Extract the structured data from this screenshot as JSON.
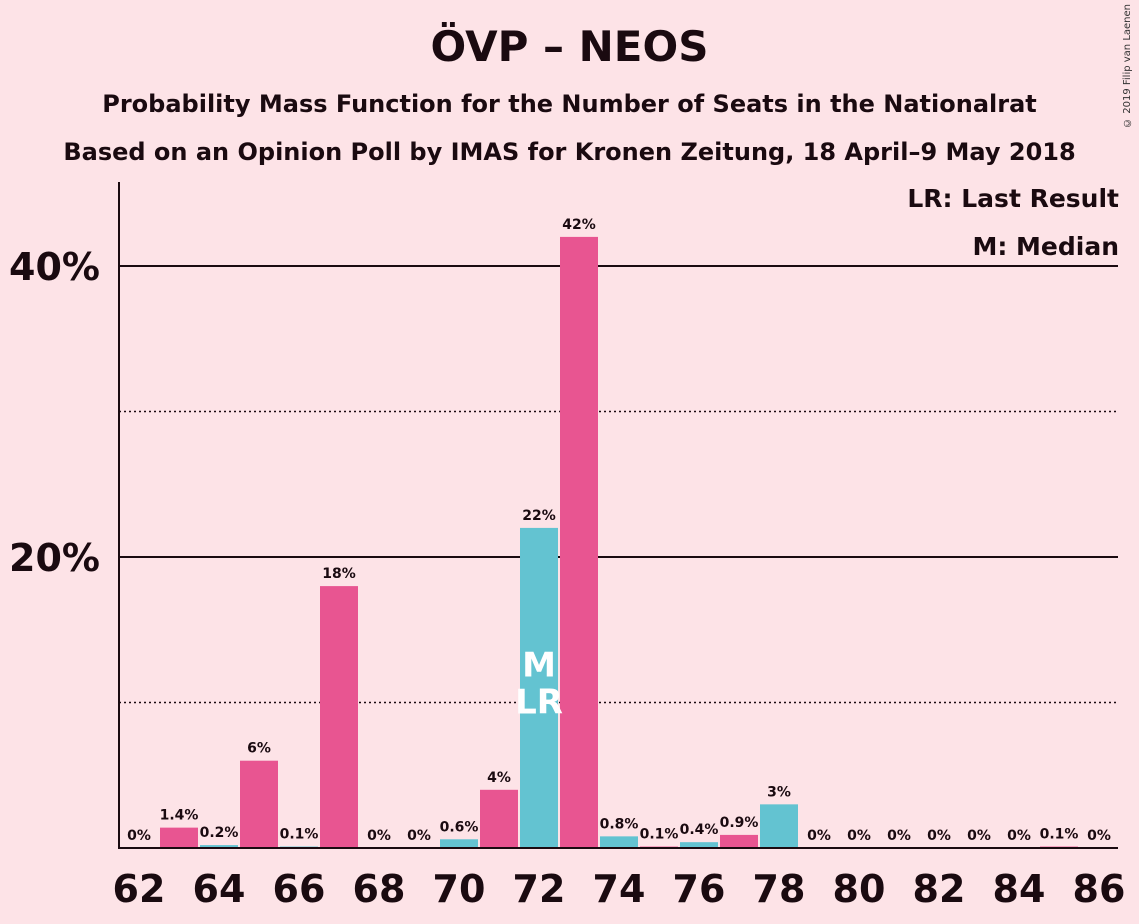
{
  "title": "ÖVP – NEOS",
  "subtitle1": "Probability Mass Function for the Number of Seats in the Nationalrat",
  "subtitle2": "Based on an Opinion Poll by IMAS for Kronen Zeitung, 18 April–9 May 2018",
  "copyright": "© 2019 Filip van Laenen",
  "legend": {
    "last_result": "LR: Last Result",
    "median": "M: Median"
  },
  "colors": {
    "background": "#FDE3E7",
    "pink": "#E85591",
    "cyan": "#63C3D1",
    "text": "#1a0a10"
  },
  "chart_data": {
    "type": "bar",
    "x": [
      62,
      63,
      64,
      65,
      66,
      67,
      68,
      69,
      70,
      71,
      72,
      73,
      74,
      75,
      76,
      77,
      78,
      79,
      80,
      81,
      82,
      83,
      84,
      85,
      86
    ],
    "values": [
      0,
      1.4,
      0.2,
      6,
      0.1,
      18,
      0,
      0,
      0.6,
      4,
      22,
      42,
      0.8,
      0.1,
      0.4,
      0.9,
      3,
      0,
      0,
      0,
      0,
      0,
      0,
      0.1,
      0
    ],
    "labels": [
      "0%",
      "1.4%",
      "0.2%",
      "6%",
      "0.1%",
      "18%",
      "0%",
      "0%",
      "0.6%",
      "4%",
      "22%",
      "42%",
      "0.8%",
      "0.1%",
      "0.4%",
      "0.9%",
      "3%",
      "0%",
      "0%",
      "0%",
      "0%",
      "0%",
      "0%",
      "0.1%",
      "0%"
    ],
    "bar_colors": [
      "pink",
      "pink",
      "cyan",
      "pink",
      "cyan",
      "pink",
      "cyan",
      "pink",
      "cyan",
      "pink",
      "cyan",
      "pink",
      "cyan",
      "pink",
      "cyan",
      "pink",
      "cyan",
      "pink",
      "cyan",
      "pink",
      "cyan",
      "pink",
      "cyan",
      "pink",
      "cyan"
    ],
    "x_tick_labels": [
      "62",
      "64",
      "66",
      "68",
      "70",
      "72",
      "74",
      "76",
      "78",
      "80",
      "82",
      "84",
      "86"
    ],
    "y_tick_labels": [
      "20%",
      "40%"
    ],
    "ylim": [
      0,
      45
    ],
    "major_gridlines": [
      20,
      40
    ],
    "minor_gridlines": [
      10,
      30
    ],
    "median_seat": 72,
    "last_result_seat": 72,
    "median_marker": "M",
    "last_result_marker": "LR"
  }
}
